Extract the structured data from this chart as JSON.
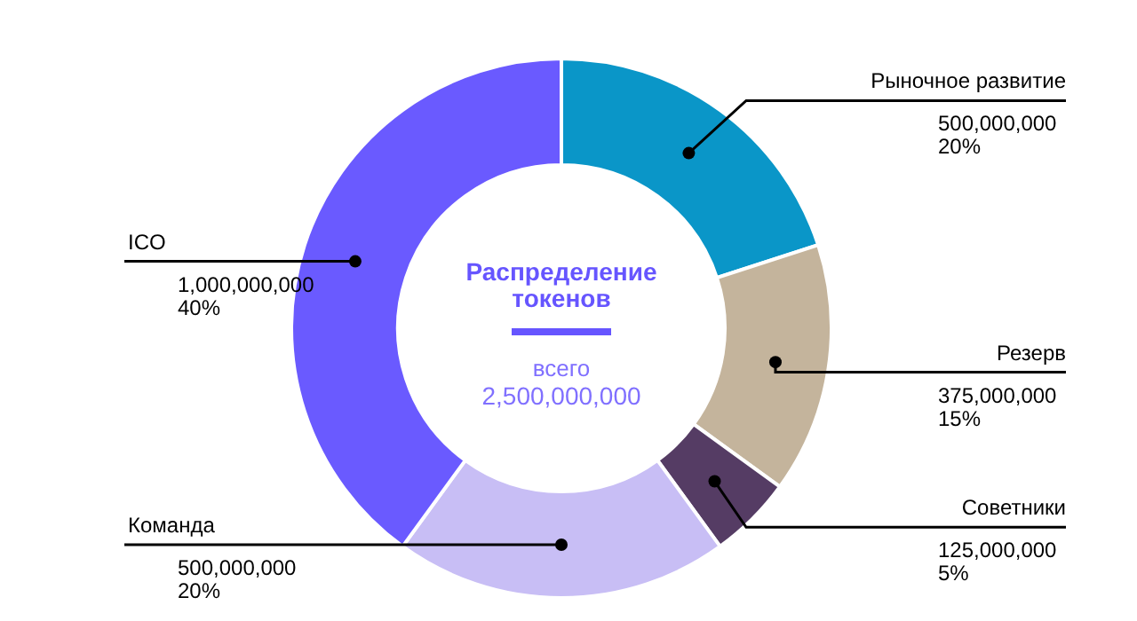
{
  "chart_data": {
    "type": "donut",
    "title": "Распределение токенов",
    "annotations": [
      "всего",
      "2,500,000,000"
    ],
    "categories": [
      "Рыночное развитие",
      "Резерв",
      "Советники",
      "Команда",
      "ICO"
    ],
    "values": [
      500000000,
      375000000,
      125000000,
      500000000,
      1000000000
    ],
    "colors": [
      "#0a96c8",
      "#c4b49c",
      "#553c64",
      "#c8bef5",
      "#6a5aff"
    ],
    "value_labels": [
      "500,000,000 20%",
      "375,000,000 15%",
      "125,000,000 5%",
      "500,000,000 20%",
      "1,000,000,000 40%"
    ]
  }
}
